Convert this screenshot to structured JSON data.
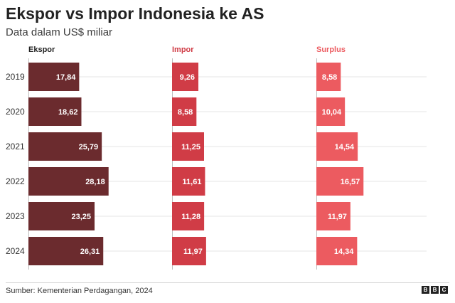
{
  "header": {
    "title": "Ekspor vs Impor Indonesia ke AS",
    "subtitle": "Data dalam US$ miliar"
  },
  "colors": {
    "ekspor": "#6b2b2e",
    "impor": "#d03c46",
    "surplus": "#ec5b60",
    "text": "#222222",
    "gridline": "#e6e6e6"
  },
  "chart_data": {
    "type": "bar",
    "orientation": "horizontal",
    "categories": [
      "2019",
      "2020",
      "2021",
      "2022",
      "2023",
      "2024"
    ],
    "series": [
      {
        "name": "Ekspor",
        "values": [
          17.84,
          18.62,
          25.79,
          28.18,
          23.25,
          26.31
        ],
        "labels": [
          "17,84",
          "18,62",
          "25,79",
          "28,18",
          "23,25",
          "26,31"
        ]
      },
      {
        "name": "Impor",
        "values": [
          9.26,
          8.58,
          11.25,
          11.61,
          11.28,
          11.97
        ],
        "labels": [
          "9,26",
          "8,58",
          "11,25",
          "11,61",
          "11,28",
          "11,97"
        ]
      },
      {
        "name": "Surplus",
        "values": [
          8.58,
          10.04,
          14.54,
          16.57,
          11.97,
          14.34
        ],
        "labels": [
          "8,58",
          "10,04",
          "14,54",
          "16,57",
          "11,97",
          "14,34"
        ]
      }
    ],
    "title": "Ekspor vs Impor Indonesia ke AS",
    "subtitle": "Data dalam US$ miliar",
    "xlim": [
      0,
      30
    ],
    "grid": false,
    "legend": "none"
  },
  "footer": {
    "source": "Sumber: Kementerian Perdagangan, 2024",
    "logo_letters": [
      "B",
      "B",
      "C"
    ]
  }
}
